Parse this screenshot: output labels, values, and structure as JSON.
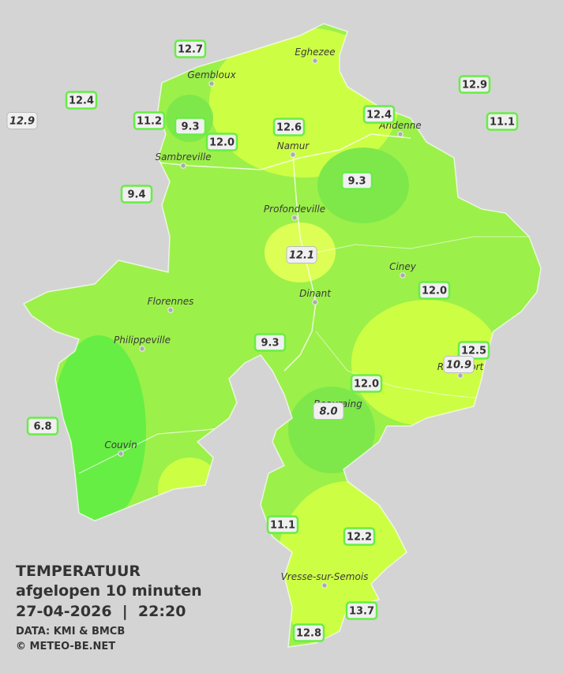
{
  "map": {
    "cities": [
      {
        "name": "Eghezee"
      },
      {
        "name": "Gembloux"
      },
      {
        "name": "Andenne"
      },
      {
        "name": "Namur"
      },
      {
        "name": "Sambreville"
      },
      {
        "name": "Profondeville"
      },
      {
        "name": "Ciney"
      },
      {
        "name": "Dinant"
      },
      {
        "name": "Florennes"
      },
      {
        "name": "Philippeville"
      },
      {
        "name": "Rochefort"
      },
      {
        "name": "Beauraing"
      },
      {
        "name": "Couvin"
      },
      {
        "name": "Vresse-sur-Semois"
      }
    ],
    "stations": [
      {
        "value": "12.7"
      },
      {
        "value": "12.4"
      },
      {
        "value": "12.9",
        "italic": true
      },
      {
        "value": "11.2"
      },
      {
        "value": "9.3"
      },
      {
        "value": "12.0"
      },
      {
        "value": "12.6"
      },
      {
        "value": "12.4"
      },
      {
        "value": "12.9"
      },
      {
        "value": "11.1"
      },
      {
        "value": "9.4"
      },
      {
        "value": "9.3"
      },
      {
        "value": "12.1",
        "italic": true
      },
      {
        "value": "12.0"
      },
      {
        "value": "9.3"
      },
      {
        "value": "12.5"
      },
      {
        "value": "10.9",
        "italic": true
      },
      {
        "value": "12.0"
      },
      {
        "value": "8.0",
        "italic": true
      },
      {
        "value": "6.8"
      },
      {
        "value": "11.1"
      },
      {
        "value": "12.2"
      },
      {
        "value": "13.7"
      },
      {
        "value": "12.8"
      }
    ]
  },
  "legend": {
    "title": "TEMPERATUUR",
    "subtitle": "afgelopen 10 minuten",
    "datetime": "27-04-2026  |  22:20",
    "source": "DATA: KMI & BMCB",
    "copyright": "© METEO-BE.NET"
  }
}
